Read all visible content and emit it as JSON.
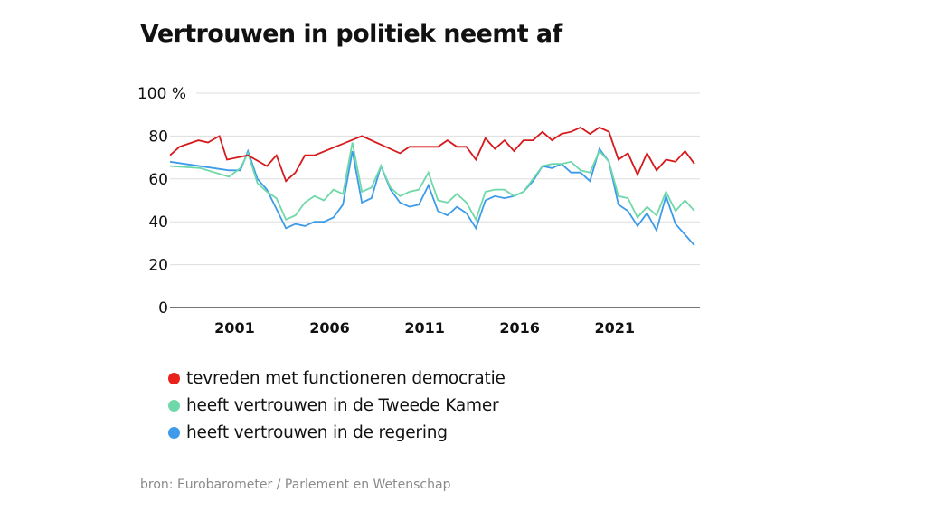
{
  "title": "Vertrouwen in politiek neemt af",
  "source": "bron: Eurobarometer / Parlement en Wetenschap",
  "chart_data": {
    "type": "line",
    "title": "Vertrouwen in politiek neemt af",
    "xlabel": "",
    "ylabel": "%",
    "xlim": [
      1997.6,
      2025.2
    ],
    "ylim": [
      0,
      100
    ],
    "yticks": [
      0,
      20,
      40,
      60,
      80,
      100
    ],
    "ytick_labels": [
      "0",
      "20",
      "40",
      "60",
      "80",
      "100 %"
    ],
    "xticks": [
      2001,
      2006,
      2011,
      2016,
      2021
    ],
    "xtick_labels": [
      "2001",
      "2006",
      "2011",
      "2016",
      "2021"
    ],
    "grid": "horizontal",
    "legend_position": "bottom-left",
    "series": [
      {
        "name": "tevreden met functioneren democratie",
        "color": "#d7191c",
        "points": [
          [
            1997.6,
            71
          ],
          [
            1998.1,
            75
          ],
          [
            1999.1,
            78
          ],
          [
            1999.6,
            77
          ],
          [
            2000.2,
            80
          ],
          [
            2000.6,
            69
          ],
          [
            2001.7,
            71
          ],
          [
            2002.7,
            66
          ],
          [
            2003.2,
            71
          ],
          [
            2003.7,
            59
          ],
          [
            2004.2,
            63
          ],
          [
            2004.7,
            71
          ],
          [
            2005.2,
            71
          ],
          [
            2007.7,
            80
          ],
          [
            2009.7,
            72
          ],
          [
            2010.2,
            75
          ],
          [
            2011.7,
            75
          ],
          [
            2012.2,
            78
          ],
          [
            2012.7,
            75
          ],
          [
            2013.2,
            75
          ],
          [
            2013.7,
            69
          ],
          [
            2014.2,
            79
          ],
          [
            2014.7,
            74
          ],
          [
            2015.2,
            78
          ],
          [
            2015.7,
            73
          ],
          [
            2016.2,
            78
          ],
          [
            2016.7,
            78
          ],
          [
            2017.2,
            82
          ],
          [
            2017.7,
            78
          ],
          [
            2018.2,
            81
          ],
          [
            2018.7,
            82
          ],
          [
            2019.2,
            84
          ],
          [
            2019.7,
            81
          ],
          [
            2020.2,
            84
          ],
          [
            2020.7,
            82
          ],
          [
            2021.2,
            69
          ],
          [
            2021.7,
            72
          ],
          [
            2022.2,
            62
          ],
          [
            2022.7,
            72
          ],
          [
            2023.2,
            64
          ],
          [
            2023.7,
            69
          ],
          [
            2024.2,
            68
          ],
          [
            2024.7,
            73
          ],
          [
            2025.2,
            67
          ]
        ]
      },
      {
        "name": "heeft vertrouwen in de Tweede Kamer",
        "color": "#6fd8a8",
        "points": [
          [
            1997.6,
            66
          ],
          [
            1999.2,
            65
          ],
          [
            2000.7,
            61
          ],
          [
            2001.3,
            65
          ],
          [
            2001.7,
            72
          ],
          [
            2002.2,
            58
          ],
          [
            2002.7,
            54
          ],
          [
            2003.2,
            51
          ],
          [
            2003.7,
            41
          ],
          [
            2004.2,
            43
          ],
          [
            2004.7,
            49
          ],
          [
            2005.2,
            52
          ],
          [
            2005.7,
            50
          ],
          [
            2006.2,
            55
          ],
          [
            2006.7,
            53
          ],
          [
            2007.2,
            77
          ],
          [
            2007.7,
            54
          ],
          [
            2008.2,
            56
          ],
          [
            2008.7,
            66
          ],
          [
            2009.2,
            56
          ],
          [
            2009.7,
            52
          ],
          [
            2010.2,
            54
          ],
          [
            2010.7,
            55
          ],
          [
            2011.2,
            63
          ],
          [
            2011.7,
            50
          ],
          [
            2012.2,
            49
          ],
          [
            2012.7,
            53
          ],
          [
            2013.2,
            49
          ],
          [
            2013.7,
            41
          ],
          [
            2014.2,
            54
          ],
          [
            2014.7,
            55
          ],
          [
            2015.2,
            55
          ],
          [
            2015.7,
            52
          ],
          [
            2016.2,
            54
          ],
          [
            2016.7,
            60
          ],
          [
            2017.2,
            66
          ],
          [
            2017.7,
            67
          ],
          [
            2018.2,
            67
          ],
          [
            2018.7,
            68
          ],
          [
            2019.2,
            64
          ],
          [
            2019.7,
            63
          ],
          [
            2020.2,
            73
          ],
          [
            2020.7,
            68
          ],
          [
            2021.2,
            52
          ],
          [
            2021.7,
            51
          ],
          [
            2022.2,
            42
          ],
          [
            2022.7,
            47
          ],
          [
            2023.2,
            43
          ],
          [
            2023.7,
            54
          ],
          [
            2024.2,
            45
          ],
          [
            2024.7,
            50
          ],
          [
            2025.2,
            45
          ]
        ]
      },
      {
        "name": "heeft vertrouwen in de regering",
        "color": "#3d9be9",
        "points": [
          [
            1997.6,
            68
          ],
          [
            2000.7,
            64
          ],
          [
            2001.3,
            64
          ],
          [
            2001.7,
            73
          ],
          [
            2002.2,
            60
          ],
          [
            2002.7,
            55
          ],
          [
            2003.2,
            46
          ],
          [
            2003.7,
            37
          ],
          [
            2004.2,
            39
          ],
          [
            2004.7,
            38
          ],
          [
            2005.2,
            40
          ],
          [
            2005.7,
            40
          ],
          [
            2006.2,
            42
          ],
          [
            2006.7,
            48
          ],
          [
            2007.2,
            73
          ],
          [
            2007.7,
            49
          ],
          [
            2008.2,
            51
          ],
          [
            2008.7,
            66
          ],
          [
            2009.2,
            55
          ],
          [
            2009.7,
            49
          ],
          [
            2010.2,
            47
          ],
          [
            2010.7,
            48
          ],
          [
            2011.2,
            57
          ],
          [
            2011.7,
            45
          ],
          [
            2012.2,
            43
          ],
          [
            2012.7,
            47
          ],
          [
            2013.2,
            44
          ],
          [
            2013.7,
            37
          ],
          [
            2014.2,
            50
          ],
          [
            2014.7,
            52
          ],
          [
            2015.2,
            51
          ],
          [
            2015.7,
            52
          ],
          [
            2016.2,
            54
          ],
          [
            2016.7,
            59
          ],
          [
            2017.2,
            66
          ],
          [
            2017.7,
            65
          ],
          [
            2018.2,
            67
          ],
          [
            2018.7,
            63
          ],
          [
            2019.2,
            63
          ],
          [
            2019.7,
            59
          ],
          [
            2020.2,
            74
          ],
          [
            2020.7,
            68
          ],
          [
            2021.2,
            48
          ],
          [
            2021.7,
            45
          ],
          [
            2022.2,
            38
          ],
          [
            2022.7,
            44
          ],
          [
            2023.2,
            36
          ],
          [
            2023.7,
            52
          ],
          [
            2024.2,
            39
          ],
          [
            2024.7,
            34
          ],
          [
            2025.2,
            29
          ]
        ]
      }
    ]
  }
}
